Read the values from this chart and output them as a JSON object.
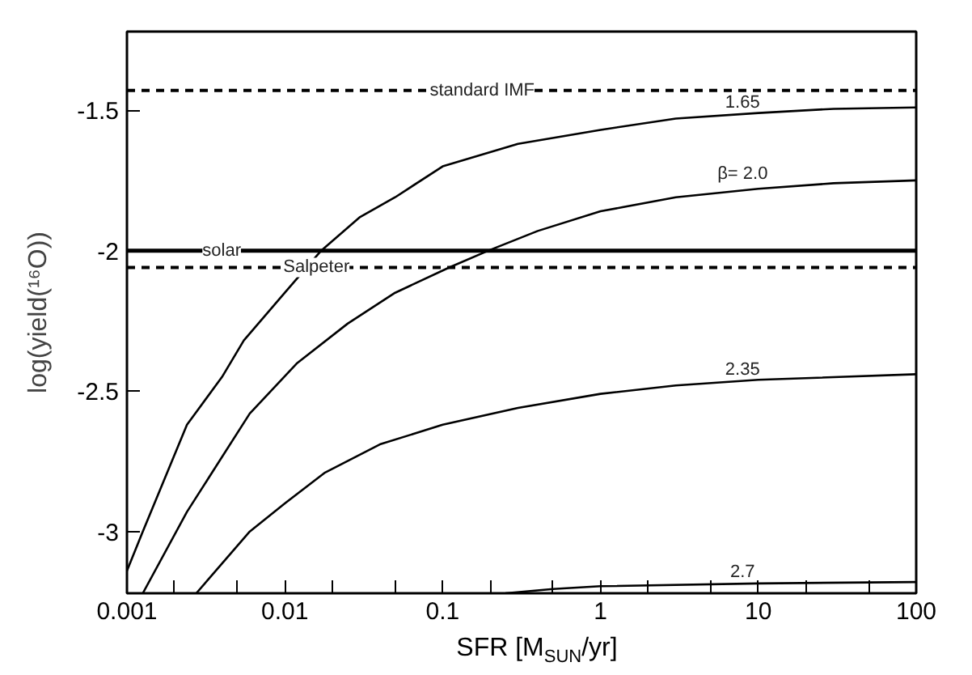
{
  "chart_data": {
    "type": "line",
    "xlabel": "SFR [M$_{SUN}$/yr]",
    "ylabel": "log(yield(¹⁶O))",
    "log": "x",
    "grid": false,
    "legend": false,
    "marker": "none",
    "line_style": "solid",
    "xlim": [
      0.001,
      100
    ],
    "ylim": [
      -3.22,
      -1.22
    ],
    "xticks": [
      0.001,
      {
        "value": 0.002,
        "label": null
      },
      {
        "value": 0.005,
        "label": null
      },
      0.01,
      {
        "value": 0.02,
        "label": null
      },
      {
        "value": 0.05,
        "label": null
      },
      0.1,
      {
        "value": 0.2,
        "label": null
      },
      {
        "value": 0.5,
        "label": null
      },
      1,
      {
        "value": 2,
        "label": null
      },
      {
        "value": 5,
        "label": null
      },
      10,
      {
        "value": 20,
        "label": null
      },
      {
        "value": 50,
        "label": null
      },
      100
    ],
    "yticks": [
      -1.5,
      -2,
      -2.5,
      -3
    ],
    "series": [
      {
        "name": "1.65",
        "color": "#000000",
        "x": [
          0.001,
          0.00126,
          0.0024,
          0.004,
          0.0055,
          0.01,
          0.017,
          0.03,
          0.05,
          0.1,
          0.3,
          1,
          3,
          10,
          30,
          100
        ],
        "values": [
          -3.14,
          -3.0,
          -2.62,
          -2.45,
          -2.32,
          -2.15,
          -2.0,
          -1.88,
          -1.81,
          -1.7,
          -1.62,
          -1.57,
          -1.53,
          -1.51,
          -1.495,
          -1.49
        ]
      },
      {
        "name": "β= 2.0",
        "color": "#000000",
        "x": [
          0.00126,
          0.0024,
          0.006,
          0.012,
          0.025,
          0.05,
          0.11,
          0.195,
          0.4,
          1,
          3,
          10,
          30,
          100
        ],
        "values": [
          -3.22,
          -2.93,
          -2.58,
          -2.4,
          -2.26,
          -2.15,
          -2.06,
          -2.0,
          -1.93,
          -1.86,
          -1.81,
          -1.78,
          -1.76,
          -1.75
        ]
      },
      {
        "name": "2.35",
        "color": "#000000",
        "x": [
          0.00275,
          0.006,
          0.01,
          0.018,
          0.04,
          0.1,
          0.3,
          1,
          3,
          10,
          100
        ],
        "values": [
          -3.22,
          -3.0,
          -2.9,
          -2.79,
          -2.69,
          -2.62,
          -2.56,
          -2.51,
          -2.48,
          -2.46,
          -2.44
        ]
      },
      {
        "name": "2.7",
        "color": "#000000",
        "x": [
          0.25,
          0.5,
          1,
          10,
          100
        ],
        "values": [
          -3.22,
          -3.205,
          -3.195,
          -3.185,
          -3.18
        ]
      }
    ],
    "ref_lines": [
      {
        "axis": "y",
        "value": -1.43,
        "label": "standard IMF",
        "line_style": "dashed"
      },
      {
        "axis": "y",
        "value": -2.0,
        "label": "solar",
        "line_style": "solid"
      },
      {
        "axis": "y",
        "value": -2.06,
        "label": "Salpeter",
        "line_style": "dashed"
      }
    ]
  }
}
